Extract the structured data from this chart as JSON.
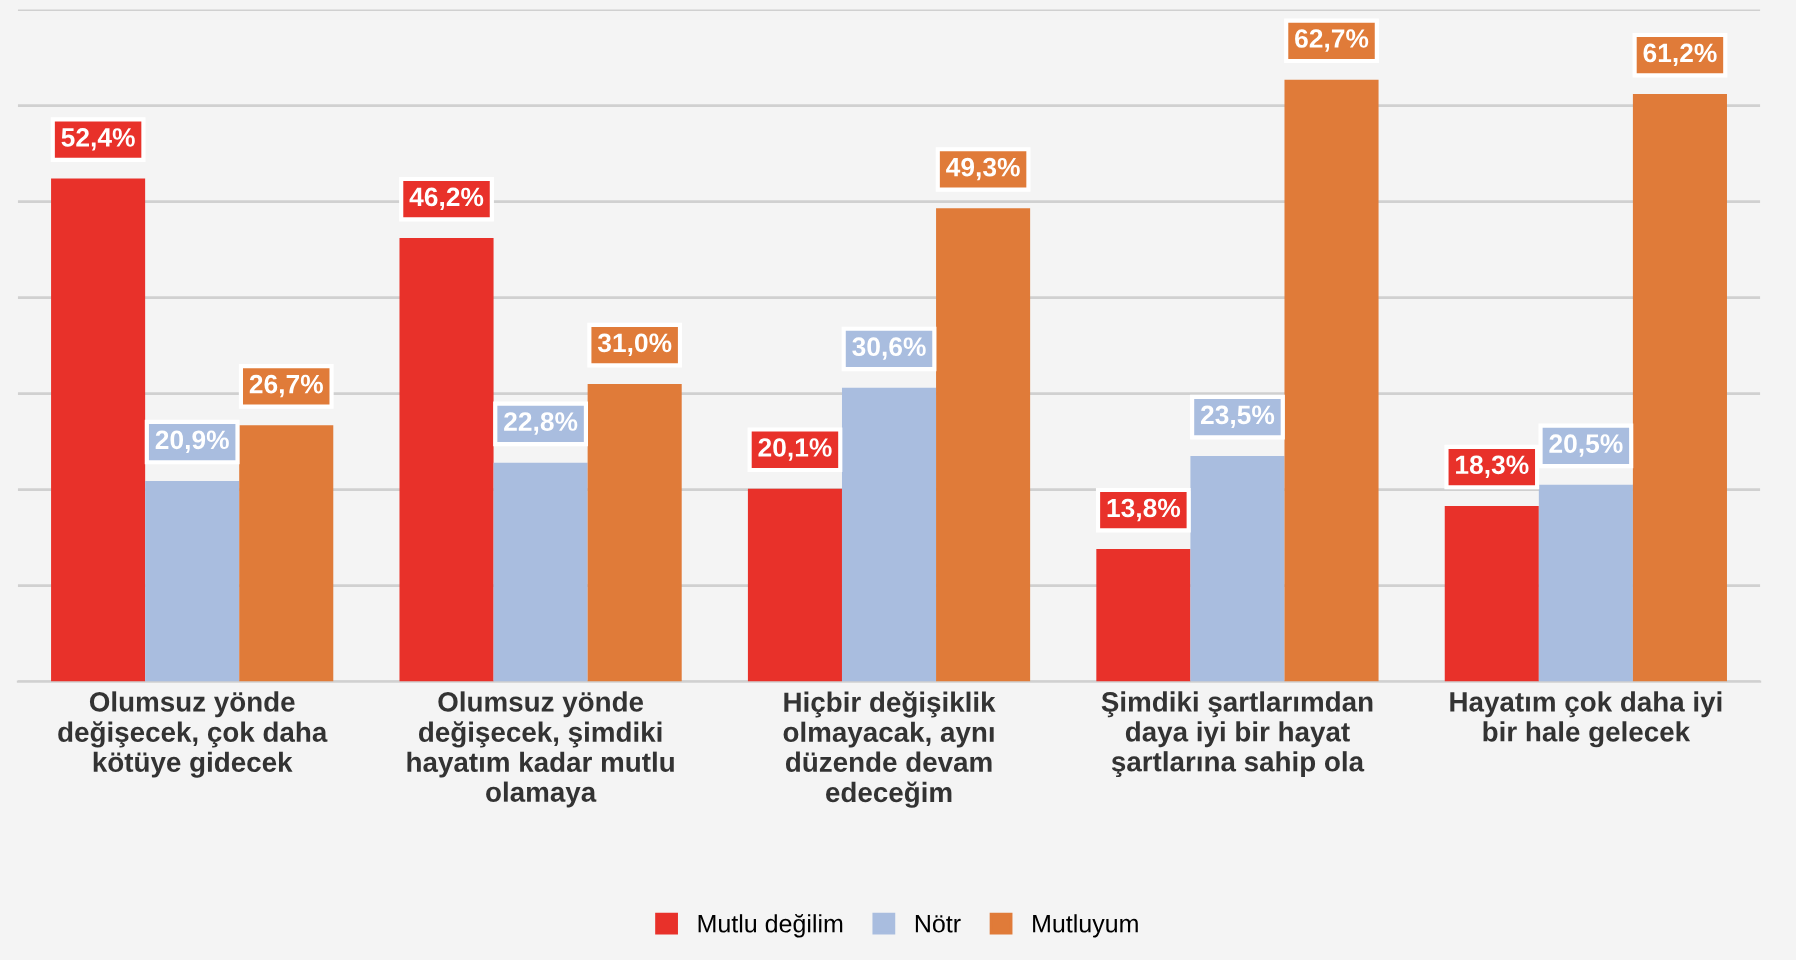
{
  "chart_data": {
    "type": "bar",
    "categories": [
      "Olumsuz yönde\ndeğişecek, çok daha\nkötüye gidecek",
      "Olumsuz yönde\ndeğişecek, şimdiki\nhayatım kadar mutlu\nolamaya",
      "Hiçbir değişiklik\nolmayacak, aynı\ndüzende devam\nedeceğim",
      "Şimdiki şartlarımdan\ndaya iyi bir hayat\nşartlarına sahip ola",
      "Hayatım çok daha iyi\nbir hale gelecek"
    ],
    "series": [
      {
        "name": "Mutlu değilim",
        "color": "#e8312a",
        "values": [
          52.4,
          46.2,
          20.1,
          13.8,
          18.3
        ],
        "value_labels": [
          "52,4%",
          "46,2%",
          "20,1%",
          "13,8%",
          "18,3%"
        ]
      },
      {
        "name": "Nötr",
        "color": "#a9bddf",
        "values": [
          20.9,
          22.8,
          30.6,
          23.5,
          20.5
        ],
        "value_labels": [
          "20,9%",
          "22,8%",
          "30,6%",
          "23,5%",
          "20,5%"
        ]
      },
      {
        "name": "Mutluyum",
        "color": "#e07b39",
        "values": [
          26.7,
          31.0,
          49.3,
          62.7,
          61.2
        ],
        "value_labels": [
          "26,7%",
          "31,0%",
          "49,3%",
          "62,7%",
          "61,2%"
        ]
      }
    ],
    "ylim": [
      0,
      70
    ],
    "yticks": [
      {
        "value": 0,
        "label": null
      },
      {
        "value": 10,
        "label": null
      },
      {
        "value": 20,
        "label": null
      },
      {
        "value": 30,
        "label": null
      },
      {
        "value": 40,
        "label": null
      },
      {
        "value": 50,
        "label": null
      },
      {
        "value": 60,
        "label": null
      },
      {
        "value": 70,
        "label": null
      }
    ],
    "grid": "y",
    "legend": "bottom",
    "tick_labels": "x"
  }
}
